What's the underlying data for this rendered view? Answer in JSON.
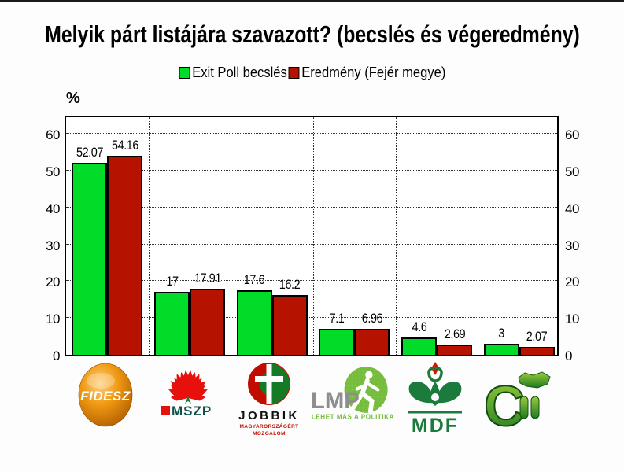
{
  "title": "Melyik párt listájára szavazott? (becslés és végeredmény)",
  "unit_label": "%",
  "legend": [
    {
      "label": "Exit Poll becslés",
      "color": "#00DC28"
    },
    {
      "label": "Eredmény (Fejér megye)",
      "color": "#B51200"
    }
  ],
  "chart_data": {
    "type": "bar",
    "title": "Melyik párt listájára szavazott? (becslés és végeredmény)",
    "categories": [
      "FIDESZ",
      "MSZP",
      "JOBBIK",
      "LMP",
      "MDF",
      "CM"
    ],
    "series": [
      {
        "name": "Exit Poll becslés",
        "color": "#00DC28",
        "values": [
          52.07,
          17,
          17.6,
          7.1,
          4.6,
          3
        ]
      },
      {
        "name": "Eredmény (Fejér megye)",
        "color": "#B51200",
        "values": [
          54.16,
          17.91,
          16.2,
          6.96,
          2.69,
          2.07
        ]
      }
    ],
    "ylabel": "%",
    "yticks": [
      0,
      10,
      20,
      30,
      40,
      50,
      60
    ],
    "ylim": [
      0,
      65.4
    ],
    "grid": "dotted",
    "legend_position": "top-center"
  },
  "logos": {
    "fidesz": {
      "text": "FIDESZ"
    },
    "mszp": {
      "text": "MSZP"
    },
    "jobbik": {
      "line1": "JOBBIK",
      "line2": "MAGYARORSZÁGÉRT",
      "line3": "MOZGALOM"
    },
    "lmp": {
      "abbr": "LMP",
      "slogan": "LEHET MÁS A POLITIKA"
    },
    "mdf": {
      "text": "MDF"
    },
    "cm": {
      "text": "C"
    }
  },
  "colors": {
    "exit_poll_green": "#00DC28",
    "result_red": "#B51200",
    "mszp_red": "#E8100C",
    "party_green": "#1B7B3C",
    "lmp_green": "#76BD3E"
  }
}
